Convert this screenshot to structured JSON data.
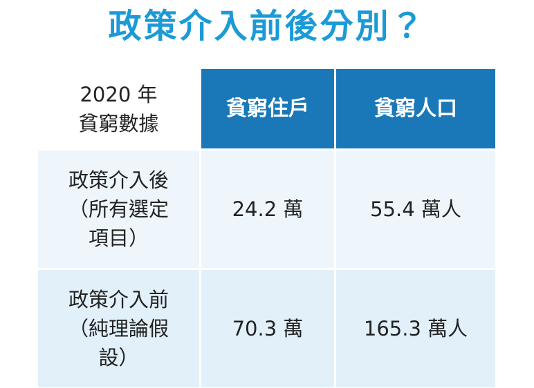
{
  "title": "政策介入前後分別？",
  "table": {
    "header": [
      [
        "2020 年",
        "貧窮數據"
      ],
      [
        "貧窮住戶"
      ],
      [
        "貧窮人口"
      ]
    ],
    "rows": [
      [
        [
          "政策介入後",
          "（所有選定",
          "項目）"
        ],
        [
          "24.2 萬"
        ],
        [
          "55.4 萬人"
        ]
      ],
      [
        [
          "政策介入前",
          "（純理論假",
          "設）"
        ],
        [
          "70.3 萬"
        ],
        [
          "165.3 萬人"
        ]
      ]
    ]
  }
}
